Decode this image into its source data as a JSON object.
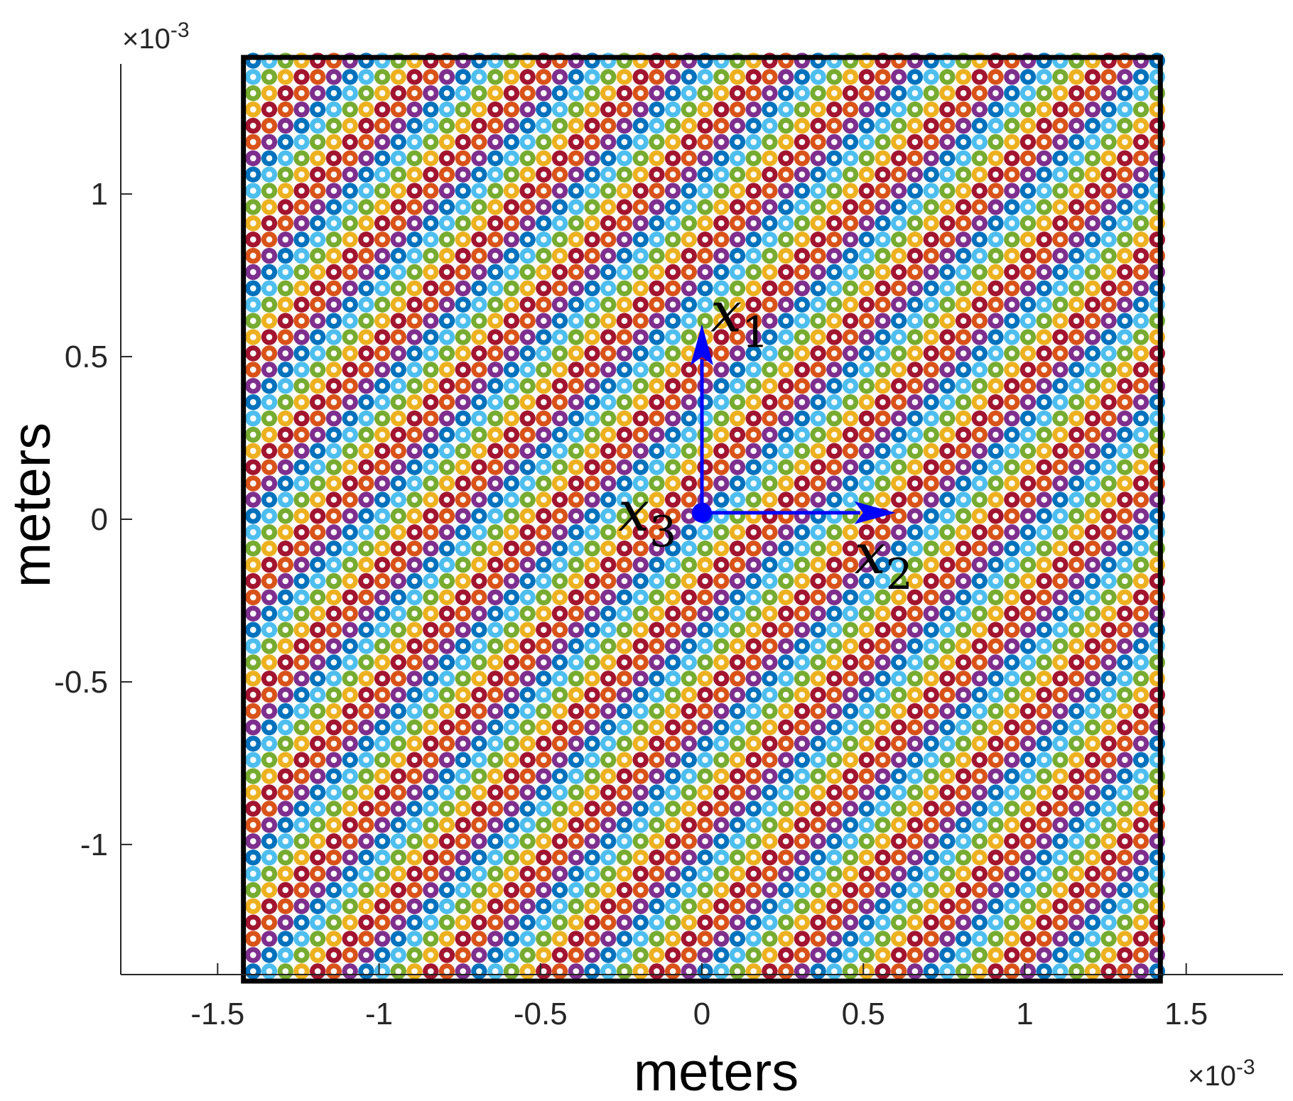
{
  "chart_data": {
    "type": "scatter",
    "title": "",
    "xlabel": "meters",
    "ylabel": "meters",
    "x_exponent": {
      "base": "10",
      "power": "-3"
    },
    "y_exponent": {
      "base": "10",
      "power": "-3"
    },
    "times_symbol": "×",
    "xlim": [
      -1.8,
      1.8
    ],
    "ylim": [
      -1.4,
      1.4
    ],
    "x_ticks": [
      -1.5,
      -1,
      -0.5,
      0,
      0.5,
      1,
      1.5
    ],
    "x_tick_labels": [
      "-1.5",
      "-1",
      "-0.5",
      "0",
      "0.5",
      "1",
      "1.5"
    ],
    "y_ticks": [
      -1,
      -0.5,
      0,
      0.5,
      1
    ],
    "y_tick_labels": [
      "-1",
      "-0.5",
      "0",
      "0.5",
      "1"
    ],
    "grid": false,
    "frame": {
      "xmin": -1.42,
      "xmax": 1.42,
      "ymin": -1.42,
      "ymax": 1.42
    },
    "lattice": {
      "pitch": 0.05,
      "xmin": -1.39,
      "xmax": 1.39,
      "ymin": -1.39,
      "ymax": 1.39,
      "stripe_direction": "diagonal, descending to the right",
      "colors": [
        "#0072BD",
        "#4DBEEE",
        "#77AC30",
        "#EDB120",
        "#A2142F",
        "#D95319",
        "#7E2F8E"
      ],
      "inner_dot_color": "#ffffff"
    },
    "coordinate_axes": {
      "origin": [
        0,
        0.02
      ],
      "color": "#0000FF",
      "x1": {
        "symbol": "x",
        "subscript": "1",
        "direction": "up",
        "tip": [
          0,
          0.6
        ]
      },
      "x2": {
        "symbol": "x",
        "subscript": "2",
        "direction": "right",
        "tip": [
          0.6,
          0.02
        ]
      },
      "x3": {
        "symbol": "x",
        "subscript": "3",
        "direction": "out of page"
      }
    }
  }
}
